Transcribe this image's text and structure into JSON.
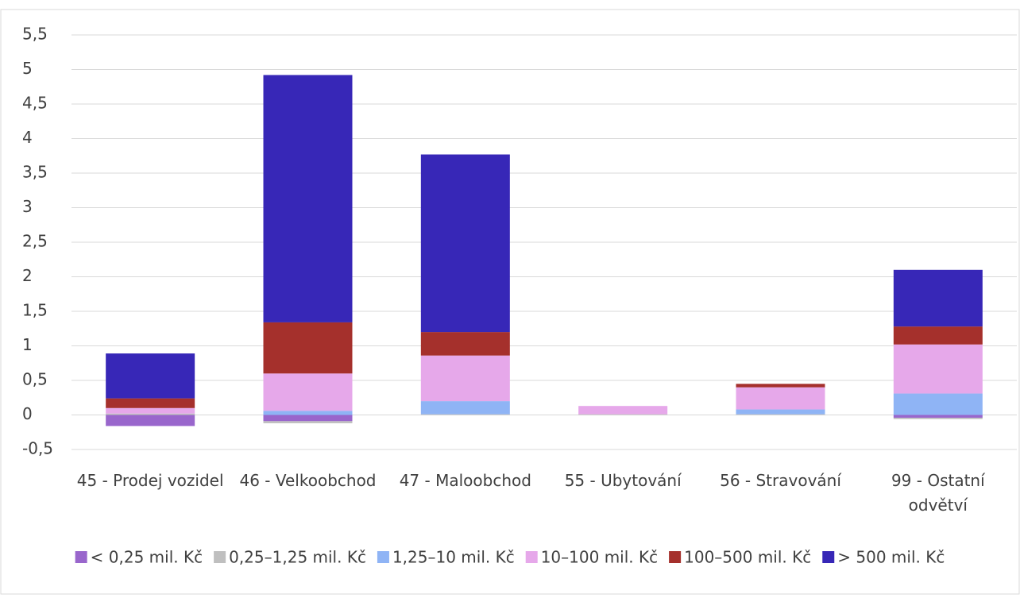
{
  "chart_data": {
    "type": "stacked-bar",
    "categories": [
      "45 - Prodej vozidel",
      "46 - Velkoobchod",
      "47 - Maloobchod",
      "55 - Ubytování",
      "56 - Stravování",
      "99 - Ostatní odvětví"
    ],
    "series": [
      {
        "name": "< 0,25 mil. Kč",
        "color": "#9966cc",
        "values": [
          -0.16,
          -0.09,
          0,
          0,
          0,
          -0.04
        ]
      },
      {
        "name": "0,25–1,25 mil. Kč",
        "color": "#bfbfbf",
        "values": [
          0.02,
          -0.03,
          0.01,
          0.01,
          0.01,
          -0.02
        ]
      },
      {
        "name": "1,25–10 mil. Kč",
        "color": "#8fb4f5",
        "values": [
          0,
          0.06,
          0.19,
          0,
          0.07,
          0.31
        ]
      },
      {
        "name": "10–100 mil. Kč",
        "color": "#e6a8ea",
        "values": [
          0.08,
          0.54,
          0.66,
          0.12,
          0.32,
          0.71
        ]
      },
      {
        "name": "100–500 mil. Kč",
        "color": "#a5302c",
        "values": [
          0.14,
          0.74,
          0.34,
          0,
          0.05,
          0.26
        ]
      },
      {
        "name": "> 500 mil. Kč",
        "color": "#3727b7",
        "values": [
          0.65,
          3.58,
          2.57,
          0,
          0,
          0.82
        ]
      }
    ],
    "ylim": [
      -0.5,
      5.5
    ],
    "yticks": [
      {
        "value": -0.5,
        "label": "-0,5"
      },
      0,
      {
        "value": 0.5,
        "label": "0,5"
      },
      1,
      {
        "value": 1.5,
        "label": "1,5"
      },
      2,
      {
        "value": 2.5,
        "label": "2,5"
      },
      3,
      {
        "value": 3.5,
        "label": "3,5"
      },
      4,
      {
        "value": 4.5,
        "label": "4,5"
      },
      5,
      {
        "value": 5.5,
        "label": "5,5"
      }
    ],
    "grid": true,
    "legend": "bottom"
  }
}
